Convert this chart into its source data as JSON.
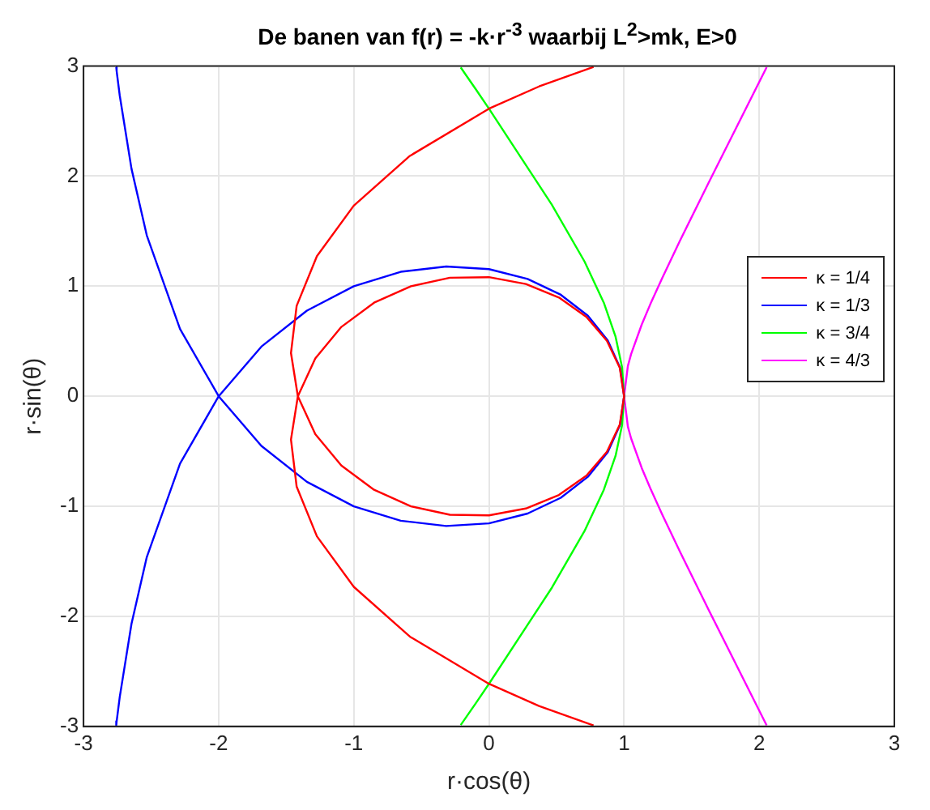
{
  "chart_data": {
    "type": "line",
    "title": "De banen van f(r) = -k·r$^{-3}$ waarbij L$^{2}$>mk, E>0",
    "xlabel": "r·cos(θ)",
    "ylabel": "r·sin(θ)",
    "xlim": [
      -3,
      3
    ],
    "ylim": [
      -3,
      3
    ],
    "xticks": [
      -3,
      -2,
      -1,
      0,
      1,
      2,
      3
    ],
    "yticks": [
      -3,
      -2,
      -1,
      0,
      1,
      2,
      3
    ],
    "grid": true,
    "legend": "right",
    "marker": "none",
    "line_style": "solid",
    "series": [
      {
        "name": "κ = 1/4",
        "color": "#ff0000",
        "x": [
          0.774,
          0.371,
          0,
          -0.585,
          -1.0,
          -1.273,
          -1.423,
          -1.465,
          -1.414,
          -1.285,
          -1.092,
          -0.85,
          -0.577,
          -0.289,
          0,
          0.273,
          0.518,
          0.721,
          0.873,
          0.968,
          1,
          0.968,
          0.873,
          0.721,
          0.518,
          0.273,
          0,
          -0.289,
          -0.577,
          -0.85,
          -1.092,
          -1.285,
          -1.414,
          -1.465,
          -1.423,
          -1.273,
          -1.0,
          -0.585,
          0,
          0.371,
          0.774
        ],
        "values": [
          2.992,
          2.815,
          2.613,
          2.184,
          1.732,
          1.273,
          0.821,
          0.393,
          0,
          -0.344,
          -0.63,
          -0.85,
          -1.0,
          -1.077,
          -1.082,
          -1.02,
          -0.897,
          -0.721,
          -0.504,
          -0.259,
          0,
          0.259,
          0.504,
          0.721,
          0.897,
          1.02,
          1.082,
          1.077,
          1.0,
          0.85,
          0.63,
          0.344,
          0,
          -0.393,
          -0.821,
          -1.273,
          -1.732,
          -2.184,
          -2.613,
          -2.815,
          -2.992
        ]
      },
      {
        "name": "κ = 1/3",
        "color": "#0000ff",
        "x": [
          -2.758,
          -2.755,
          -2.732,
          -2.645,
          -2.532,
          -2.286,
          -2,
          -1.684,
          -1.347,
          -1.0,
          -0.653,
          -0.316,
          0,
          0.286,
          0.532,
          0.732,
          0.879,
          0.97,
          1,
          0.97,
          0.879,
          0.732,
          0.532,
          0.286,
          0,
          -0.316,
          -0.653,
          -1.0,
          -1.347,
          -1.684,
          -2,
          -2.286,
          -2.532,
          -2.645,
          -2.732,
          -2.755,
          -2.758
        ],
        "values": [
          2.99,
          2.954,
          2.732,
          2.067,
          1.462,
          0.612,
          0,
          -0.451,
          -0.778,
          -1.0,
          -1.131,
          -1.179,
          -1.155,
          -1.066,
          -0.922,
          -0.732,
          -0.508,
          -0.26,
          0,
          0.26,
          0.508,
          0.732,
          0.922,
          1.066,
          1.155,
          1.179,
          1.131,
          1.0,
          0.778,
          0.451,
          0,
          -0.612,
          -1.462,
          -2.067,
          -2.732,
          -2.954,
          -2.99
        ]
      },
      {
        "name": "κ = 3/4",
        "color": "#00ff00",
        "x": [
          -0.209,
          -0.151,
          -0.097,
          0,
          0.466,
          0.707,
          0.85,
          0.937,
          0.985,
          1,
          0.985,
          0.937,
          0.85,
          0.707,
          0.466,
          0,
          -0.097,
          -0.151,
          -0.209
        ],
        "values": [
          -2.988,
          -2.885,
          -2.789,
          -2.613,
          -1.739,
          -1.225,
          -0.85,
          -0.541,
          -0.264,
          0,
          0.264,
          0.541,
          0.85,
          1.225,
          1.739,
          2.613,
          2.789,
          2.885,
          2.988
        ]
      },
      {
        "name": "κ = 4/3",
        "color": "#ff00ff",
        "x": [
          2.055,
          2.0,
          1.623,
          1.414,
          1.283,
          1.194,
          1.131,
          1.052,
          1.028,
          1,
          1.028,
          1.052,
          1.131,
          1.194,
          1.283,
          1.414,
          1.623,
          2.0,
          2.055
        ],
        "values": [
          -2.99,
          -2.856,
          -1.934,
          -1.414,
          -1.076,
          -0.836,
          -0.653,
          -0.383,
          -0.275,
          0,
          0.275,
          0.383,
          0.653,
          0.836,
          1.076,
          1.414,
          1.934,
          2.856,
          2.99
        ]
      }
    ]
  }
}
